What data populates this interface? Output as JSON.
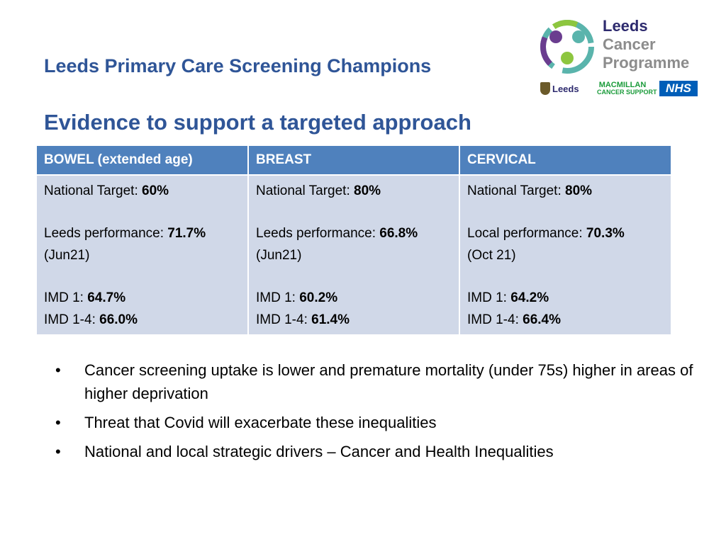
{
  "header": {
    "title": "Leeds Primary Care Screening Champions",
    "subtitle": "Evidence to support a targeted approach"
  },
  "logo": {
    "line1": "Leeds",
    "line2": "Cancer",
    "line3": "Programme",
    "partners": {
      "leeds_council": "Leeds",
      "macmillan_top": "MACMILLAN",
      "macmillan_bottom": "CANCER SUPPORT",
      "nhs": "NHS"
    },
    "colors": {
      "navy": "#2d2a6e",
      "teal": "#5ab4ac",
      "purple": "#6a3d8f",
      "green": "#8dc63f"
    }
  },
  "table": {
    "columns": [
      {
        "header": "BOWEL (extended age)",
        "target_label": "National Target: ",
        "target_value": "60%",
        "performance_label": "Leeds performance: ",
        "performance_value": "71.7%",
        "performance_date": "(Jun21)",
        "imd1_label": "IMD 1: ",
        "imd1_value": "64.7%",
        "imd14_label": "IMD 1-4: ",
        "imd14_value": "66.0%"
      },
      {
        "header": "BREAST",
        "target_label": "National Target: ",
        "target_value": "80%",
        "performance_label": "Leeds performance: ",
        "performance_value": "66.8%",
        "performance_date": "(Jun21)",
        "imd1_label": "IMD 1: ",
        "imd1_value": "60.2%",
        "imd14_label": "IMD 1-4: ",
        "imd14_value": "61.4%"
      },
      {
        "header": "CERVICAL",
        "target_label": "National Target: ",
        "target_value": "80%",
        "performance_label": "Local performance: ",
        "performance_value": "70.3%",
        "performance_date": "(Oct 21)",
        "imd1_label": "IMD 1: ",
        "imd1_value": "64.2%",
        "imd14_label": "IMD 1-4: ",
        "imd14_value": "66.4%"
      }
    ],
    "colors": {
      "header_bg": "#4f81bd",
      "cell_bg": "#d0d8e8"
    }
  },
  "bullets": [
    "Cancer screening uptake is lower and premature mortality (under 75s) higher in areas of higher deprivation",
    "Threat that Covid will exacerbate these inequalities",
    "National and local strategic drivers – Cancer and Health Inequalities"
  ],
  "bullet_symbol": "•",
  "colors": {
    "title": "#2f5597"
  }
}
